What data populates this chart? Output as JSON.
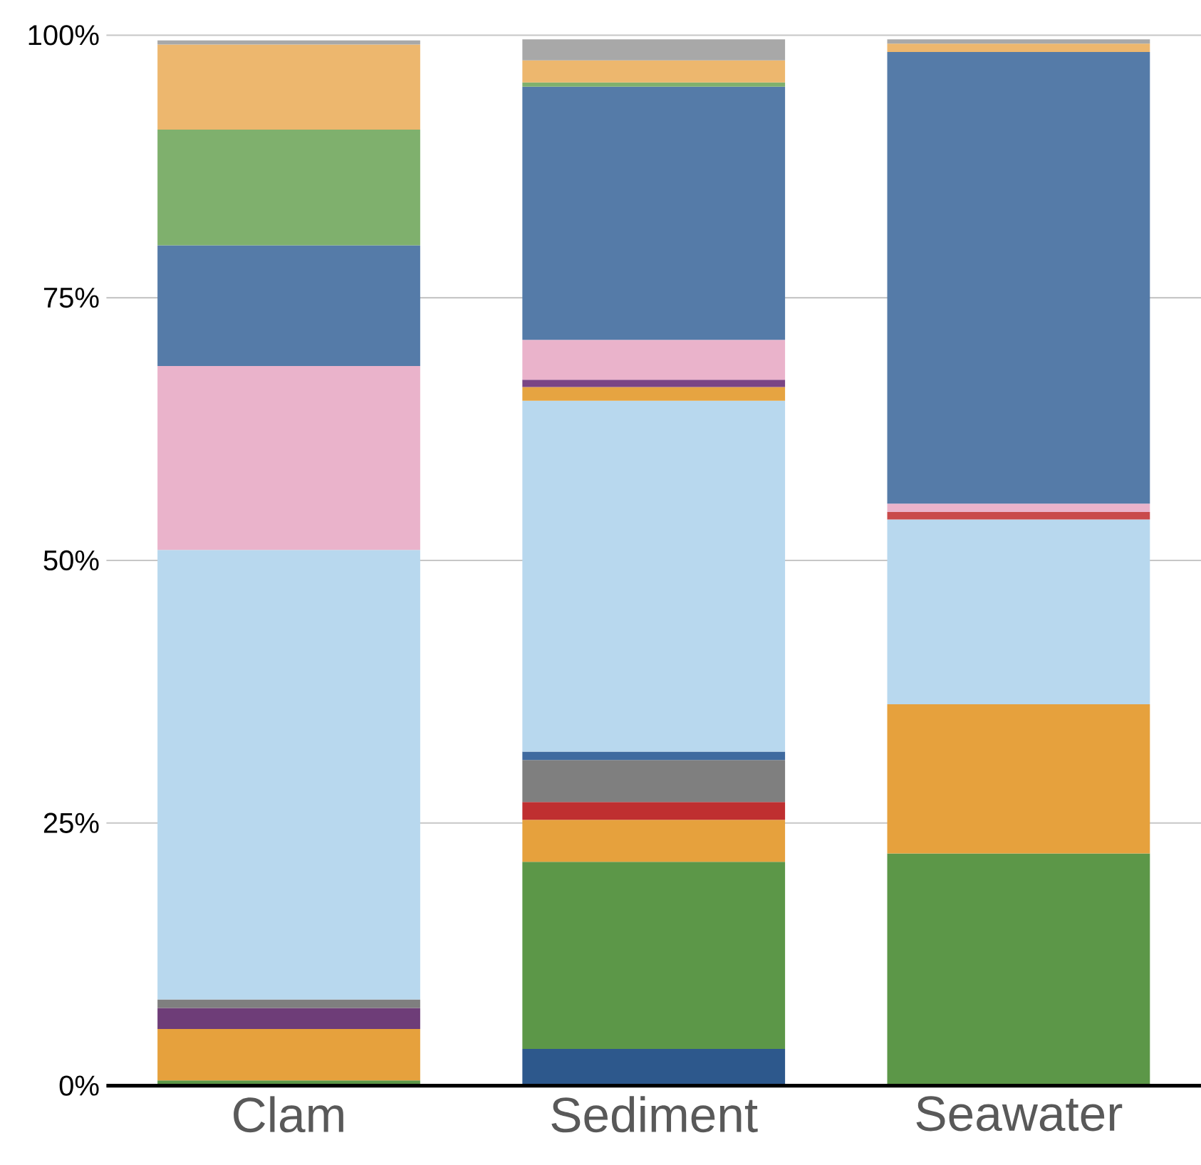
{
  "chart_data": {
    "type": "bar",
    "stacked": true,
    "categories": [
      "Clam",
      "Sediment",
      "Seawater"
    ],
    "series": [
      {
        "color": "#2d588c",
        "values": [
          null,
          3.5,
          null
        ]
      },
      {
        "color": "#5c9748",
        "values": [
          0.5,
          17.8,
          22.1
        ]
      },
      {
        "color": "#e6a13d",
        "values": [
          4.9,
          4.0,
          14.2
        ]
      },
      {
        "color": "#bf2f30",
        "values": [
          null,
          1.7,
          null
        ]
      },
      {
        "color": "#6e3d78",
        "values": [
          2.0,
          null,
          null
        ]
      },
      {
        "color": "#7f7f7f",
        "values": [
          0.8,
          4.0,
          null
        ]
      },
      {
        "color": "#3f6a9f",
        "values": [
          null,
          0.8,
          null
        ]
      },
      {
        "color": "#b8d8ee",
        "values": [
          42.8,
          33.4,
          17.6
        ]
      },
      {
        "color": "#c94a4b",
        "values": [
          null,
          null,
          0.7
        ]
      },
      {
        "color": "#e6a441",
        "values": [
          null,
          1.3,
          null
        ]
      },
      {
        "color": "#7a4585",
        "values": [
          null,
          0.7,
          null
        ]
      },
      {
        "color": "#eab3cb",
        "values": [
          17.5,
          3.8,
          0.8
        ]
      },
      {
        "color": "#557ba8",
        "values": [
          11.5,
          24.1,
          43.0
        ]
      },
      {
        "color": "#7fb06d",
        "values": [
          11.0,
          0.4,
          null
        ]
      },
      {
        "color": "#edb76e",
        "values": [
          8.1,
          2.1,
          0.8
        ]
      },
      {
        "color": "#a8a8a8",
        "values": [
          0.4,
          2.0,
          0.4
        ]
      }
    ],
    "ylim": [
      0,
      100
    ],
    "yticks": [
      {
        "value": 0,
        "label": "0%"
      },
      {
        "value": 25,
        "label": "25%"
      },
      {
        "value": 50,
        "label": "50%"
      },
      {
        "value": 75,
        "label": "75%"
      },
      {
        "value": 100,
        "label": "100%"
      }
    ],
    "grid": "y"
  }
}
